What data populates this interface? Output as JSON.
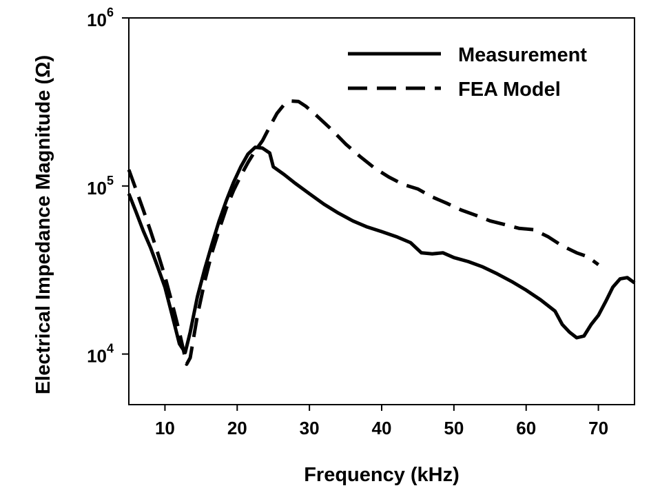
{
  "chart_data": {
    "type": "line",
    "title": "",
    "xlabel": "Frequency (kHz)",
    "ylabel": "Electrical Impedance Magnitude (Ω)",
    "xlim": [
      5,
      75
    ],
    "ylim": [
      5000,
      1000000
    ],
    "yscale": "log",
    "grid": false,
    "legend_position": "top-right",
    "x_ticks": [
      10,
      20,
      30,
      40,
      50,
      60,
      70
    ],
    "x_tick_labels": [
      "10",
      "20",
      "30",
      "40",
      "50",
      "60",
      "70"
    ],
    "y_ticks": [
      {
        "value": 10000,
        "base": "10",
        "exp": "4"
      },
      {
        "value": 100000,
        "base": "10",
        "exp": "5"
      },
      {
        "value": 1000000,
        "base": "10",
        "exp": "6"
      }
    ],
    "series": [
      {
        "name": "Measurement",
        "style": "solid",
        "color": "#000000",
        "points": [
          [
            5,
            90000
          ],
          [
            6,
            70000
          ],
          [
            7,
            54000
          ],
          [
            8,
            43000
          ],
          [
            9,
            33000
          ],
          [
            10,
            25000
          ],
          [
            11,
            17000
          ],
          [
            12,
            11500
          ],
          [
            12.8,
            10200
          ],
          [
            13.5,
            13500
          ],
          [
            14.5,
            22000
          ],
          [
            15.5,
            32000
          ],
          [
            16.5,
            45000
          ],
          [
            17.5,
            62000
          ],
          [
            18.5,
            82000
          ],
          [
            19.5,
            105000
          ],
          [
            20.5,
            130000
          ],
          [
            21.5,
            155000
          ],
          [
            22.5,
            170000
          ],
          [
            23.5,
            168000
          ],
          [
            24.5,
            157000
          ],
          [
            25,
            130000
          ],
          [
            26.5,
            117000
          ],
          [
            28,
            104000
          ],
          [
            30,
            90000
          ],
          [
            32,
            78000
          ],
          [
            34,
            69000
          ],
          [
            36,
            62000
          ],
          [
            38,
            57000
          ],
          [
            40,
            53500
          ],
          [
            42,
            50000
          ],
          [
            44,
            46000
          ],
          [
            45.5,
            40000
          ],
          [
            47,
            39500
          ],
          [
            48.5,
            40000
          ],
          [
            50,
            37500
          ],
          [
            52,
            35500
          ],
          [
            54,
            33000
          ],
          [
            56,
            30000
          ],
          [
            58,
            27000
          ],
          [
            60,
            24000
          ],
          [
            62,
            21000
          ],
          [
            64,
            18000
          ],
          [
            65,
            15000
          ],
          [
            66,
            13500
          ],
          [
            67,
            12500
          ],
          [
            68,
            12800
          ],
          [
            69,
            15000
          ],
          [
            70,
            17000
          ],
          [
            71,
            20500
          ],
          [
            72,
            25000
          ],
          [
            73,
            28000
          ],
          [
            74,
            28500
          ],
          [
            75,
            26500
          ]
        ]
      },
      {
        "name": "FEA Model",
        "style": "dashed",
        "color": "#000000",
        "points": [
          [
            5,
            125000
          ],
          [
            6,
            95000
          ],
          [
            7,
            72000
          ],
          [
            8,
            54000
          ],
          [
            9,
            40000
          ],
          [
            10,
            29000
          ],
          [
            11,
            20000
          ],
          [
            12,
            13500
          ],
          [
            13,
            8700
          ],
          [
            13.5,
            9500
          ],
          [
            14.5,
            17000
          ],
          [
            15.5,
            27000
          ],
          [
            16.5,
            40000
          ],
          [
            17.5,
            55000
          ],
          [
            18.5,
            74000
          ],
          [
            19.5,
            94000
          ],
          [
            20.5,
            115000
          ],
          [
            21.5,
            138000
          ],
          [
            22.5,
            162000
          ],
          [
            23.5,
            186000
          ],
          [
            24.5,
            225000
          ],
          [
            25.5,
            270000
          ],
          [
            26.5,
            305000
          ],
          [
            27.5,
            320000
          ],
          [
            28.5,
            318000
          ],
          [
            29.5,
            298000
          ],
          [
            31,
            262000
          ],
          [
            33,
            218000
          ],
          [
            35,
            178000
          ],
          [
            37,
            150000
          ],
          [
            39,
            128000
          ],
          [
            41,
            113000
          ],
          [
            43,
            102000
          ],
          [
            45,
            96000
          ],
          [
            47,
            86000
          ],
          [
            49,
            79000
          ],
          [
            51,
            72000
          ],
          [
            53,
            67000
          ],
          [
            55,
            62000
          ],
          [
            57,
            59000
          ],
          [
            59,
            56000
          ],
          [
            61,
            55000
          ],
          [
            63,
            50000
          ],
          [
            65,
            44000
          ],
          [
            67,
            40000
          ],
          [
            68.5,
            38000
          ],
          [
            70,
            34000
          ]
        ]
      }
    ]
  }
}
